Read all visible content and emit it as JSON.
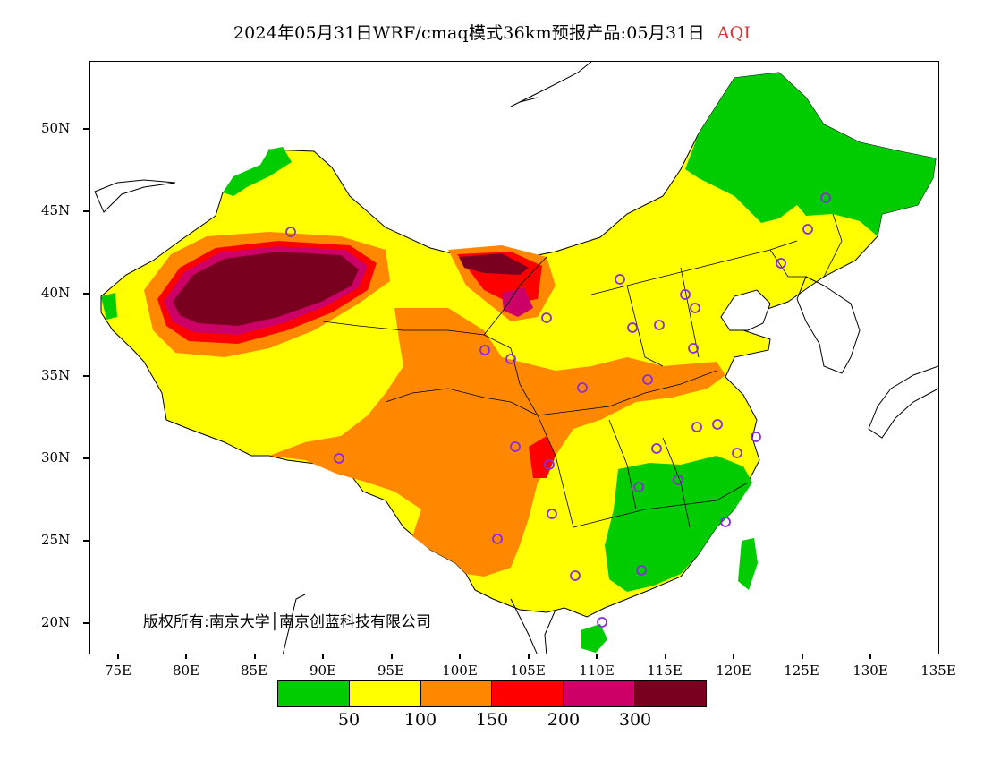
{
  "title": {
    "main": "2024年05月31日WRF/cmaq模式36km预报产品:05月31日",
    "variable": "AQI"
  },
  "copyright": "版权所有:南京大学│南京创蓝科技有限公司",
  "axes": {
    "lat_labels": [
      "50N",
      "45N",
      "40N",
      "35N",
      "30N",
      "25N",
      "20N"
    ],
    "lon_labels": [
      "75E",
      "80E",
      "85E",
      "90E",
      "95E",
      "100E",
      "105E",
      "110E",
      "115E",
      "120E",
      "125E",
      "130E",
      "135E"
    ]
  },
  "legend": {
    "colors": [
      "#00cc00",
      "#ffff00",
      "#ff8800",
      "#ff0000",
      "#cc0066",
      "#7a0020"
    ],
    "labels": [
      "50",
      "100",
      "150",
      "200",
      "300"
    ]
  },
  "colors": {
    "ocean": "#ffffff",
    "outline": "#000000",
    "station_marker": "#8a2be2"
  }
}
